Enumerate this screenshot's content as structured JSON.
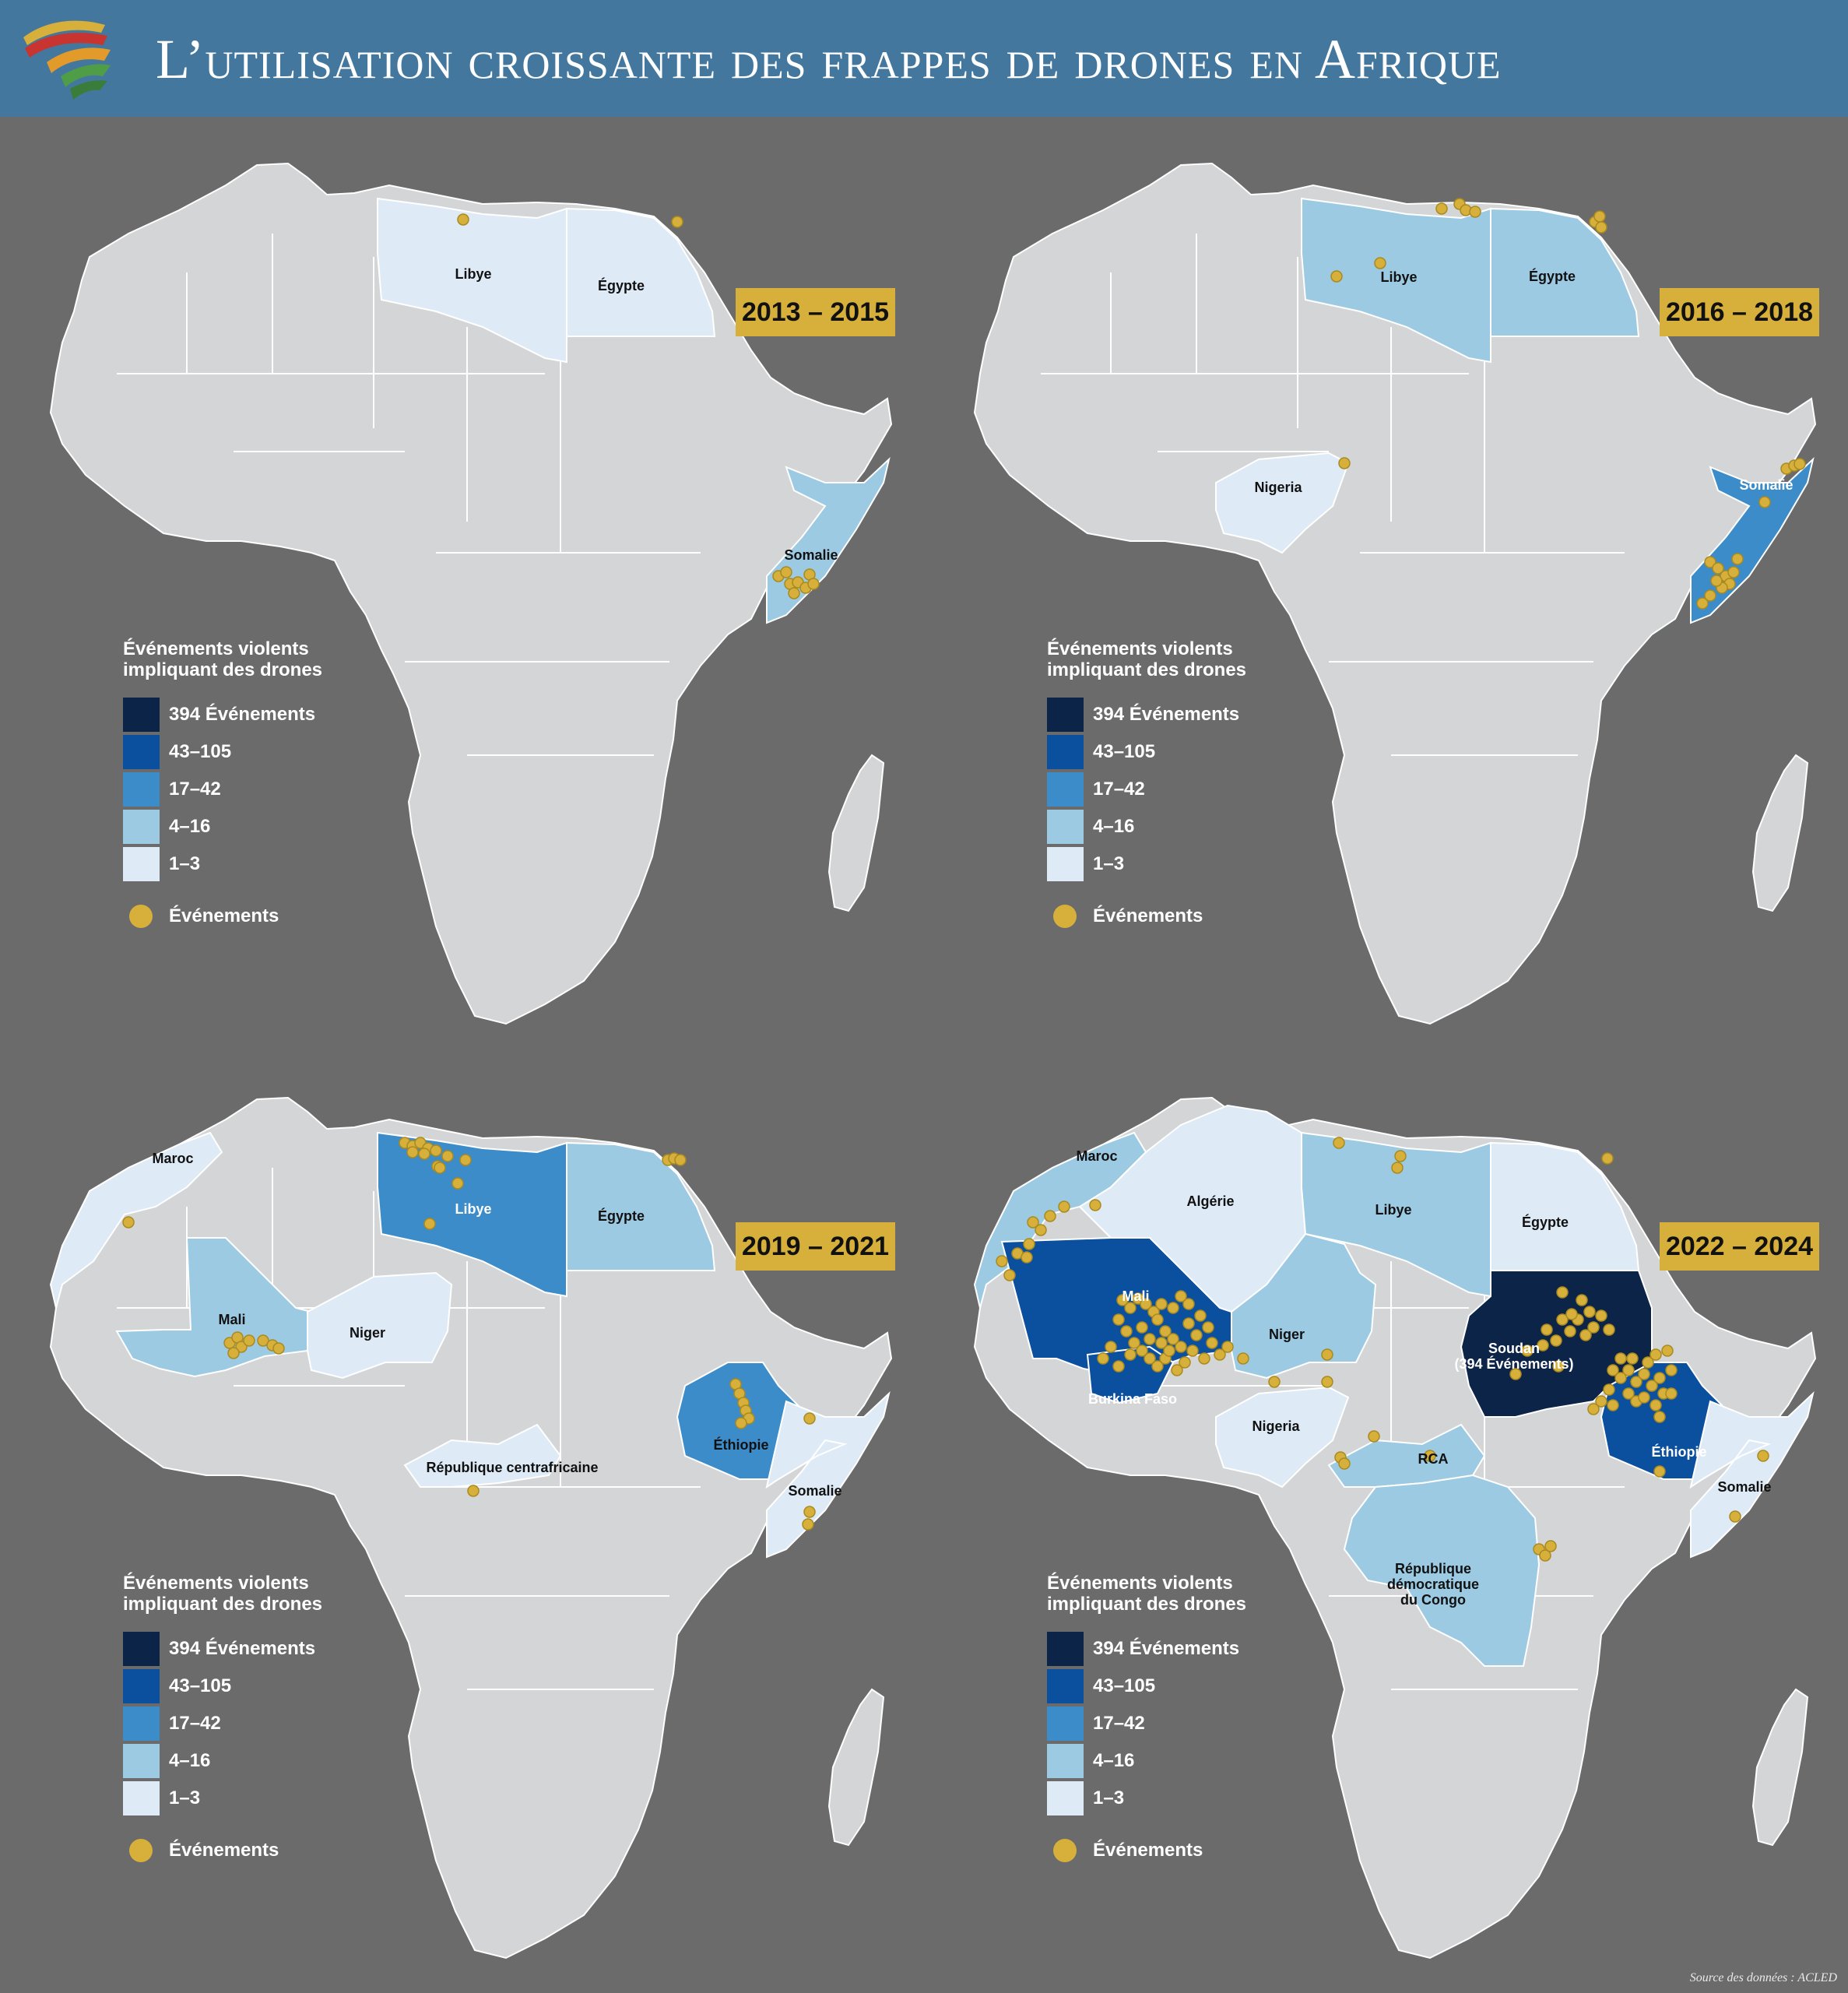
{
  "title": "L’utilisation croissante des frappes de drones en Afrique",
  "source": "Source des données : ACLED",
  "colors": {
    "background": "#6b6b6b",
    "header": "#44779d",
    "land": "#d3d5d7",
    "border": "#ffffff",
    "event_dot": "#d6b03a",
    "period_badge": "#d6b03a",
    "bin_394": "#0c2448",
    "bin_43_105": "#0b4f9f",
    "bin_17_42": "#3c8cc9",
    "bin_4_16": "#9ccae3",
    "bin_1_3": "#deebf7"
  },
  "legend": {
    "title_line1": "Événements violents",
    "title_line2": "impliquant des drones",
    "bins": [
      "394 Événements",
      "43–105",
      "17–42",
      "4–16",
      "1–3"
    ],
    "events_label": "Événements"
  },
  "panels": [
    {
      "period": "2013 – 2015",
      "countries": [
        {
          "name": "Libye",
          "bin": "1–3"
        },
        {
          "name": "Égypte",
          "bin": "1–3"
        },
        {
          "name": "Somalie",
          "bin": "4–16"
        }
      ]
    },
    {
      "period": "2016 – 2018",
      "countries": [
        {
          "name": "Libye",
          "bin": "4–16"
        },
        {
          "name": "Égypte",
          "bin": "4–16"
        },
        {
          "name": "Nigeria",
          "bin": "1–3"
        },
        {
          "name": "Somalie",
          "bin": "17–42"
        }
      ]
    },
    {
      "period": "2019 – 2021",
      "countries": [
        {
          "name": "Maroc",
          "bin": "1–3"
        },
        {
          "name": "Libye",
          "bin": "17–42"
        },
        {
          "name": "Égypte",
          "bin": "4–16"
        },
        {
          "name": "Mali",
          "bin": "4–16"
        },
        {
          "name": "Niger",
          "bin": "1–3"
        },
        {
          "name": "République centrafricaine",
          "bin": "1–3"
        },
        {
          "name": "Éthiopie",
          "bin": "17–42"
        },
        {
          "name": "Somalie",
          "bin": "1–3"
        }
      ]
    },
    {
      "period": "2022 – 2024",
      "countries": [
        {
          "name": "Maroc",
          "bin": "4–16"
        },
        {
          "name": "Algérie",
          "bin": "1–3"
        },
        {
          "name": "Libye",
          "bin": "4–16"
        },
        {
          "name": "Égypte",
          "bin": "1–3"
        },
        {
          "name": "Mali",
          "bin": "43–105"
        },
        {
          "name": "Burkina Faso",
          "bin": "43–105"
        },
        {
          "name": "Niger",
          "bin": "4–16"
        },
        {
          "name": "Nigeria",
          "bin": "1–3"
        },
        {
          "name": "Soudan",
          "sublabel": "(394 Événements)",
          "bin": "394 Événements"
        },
        {
          "name": "RCA",
          "bin": "4–16"
        },
        {
          "name": "Éthiopie",
          "bin": "43–105"
        },
        {
          "name": "Somalie",
          "bin": "1–3"
        },
        {
          "name": "République",
          "name_line2": "démocratique",
          "name_line3": "du Congo",
          "bin": "4–16"
        }
      ]
    }
  ]
}
